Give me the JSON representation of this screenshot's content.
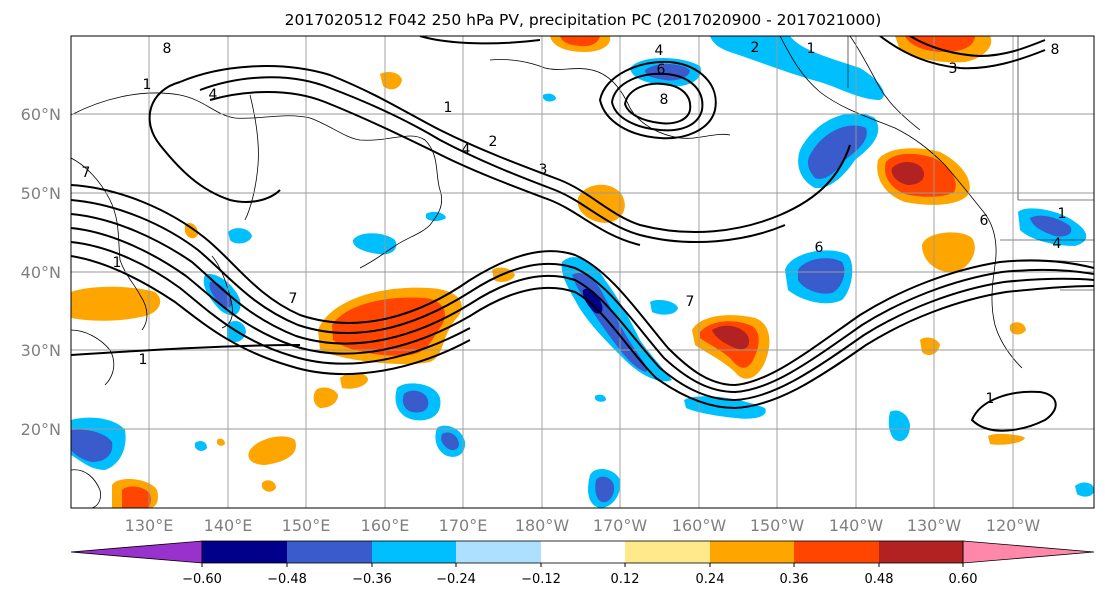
{
  "title": "2017020512 F042 250 hPa PV, precipitation PC (2017020900 - 2017021000)",
  "map": {
    "lat_labels": [
      "60°N",
      "50°N",
      "40°N",
      "30°N",
      "20°N"
    ],
    "lon_labels": [
      "130°E",
      "140°E",
      "150°E",
      "160°E",
      "170°E",
      "180°W",
      "170°W",
      "160°W",
      "150°W",
      "140°W",
      "130°W",
      "120°W"
    ]
  },
  "contour_labels": [
    "8",
    "4",
    "1",
    "1",
    "2",
    "4",
    "3",
    "6",
    "8",
    "4",
    "2",
    "1",
    "3",
    "8",
    "1",
    "7",
    "1",
    "7",
    "7",
    "6",
    "6",
    "1",
    "1",
    "4"
  ],
  "colorbar": {
    "tick_labels": [
      "−0.60",
      "−0.48",
      "−0.36",
      "−0.24",
      "−0.12",
      "0.12",
      "0.24",
      "0.36",
      "0.48",
      "0.60"
    ],
    "colors": [
      "#9932CC",
      "#00008B",
      "#3A5BCB",
      "#00BFFF",
      "#ADDFFF",
      "#FFFFFF",
      "#FFE98A",
      "#FFA500",
      "#FF4500",
      "#B22222",
      "#FF88AA"
    ]
  }
}
